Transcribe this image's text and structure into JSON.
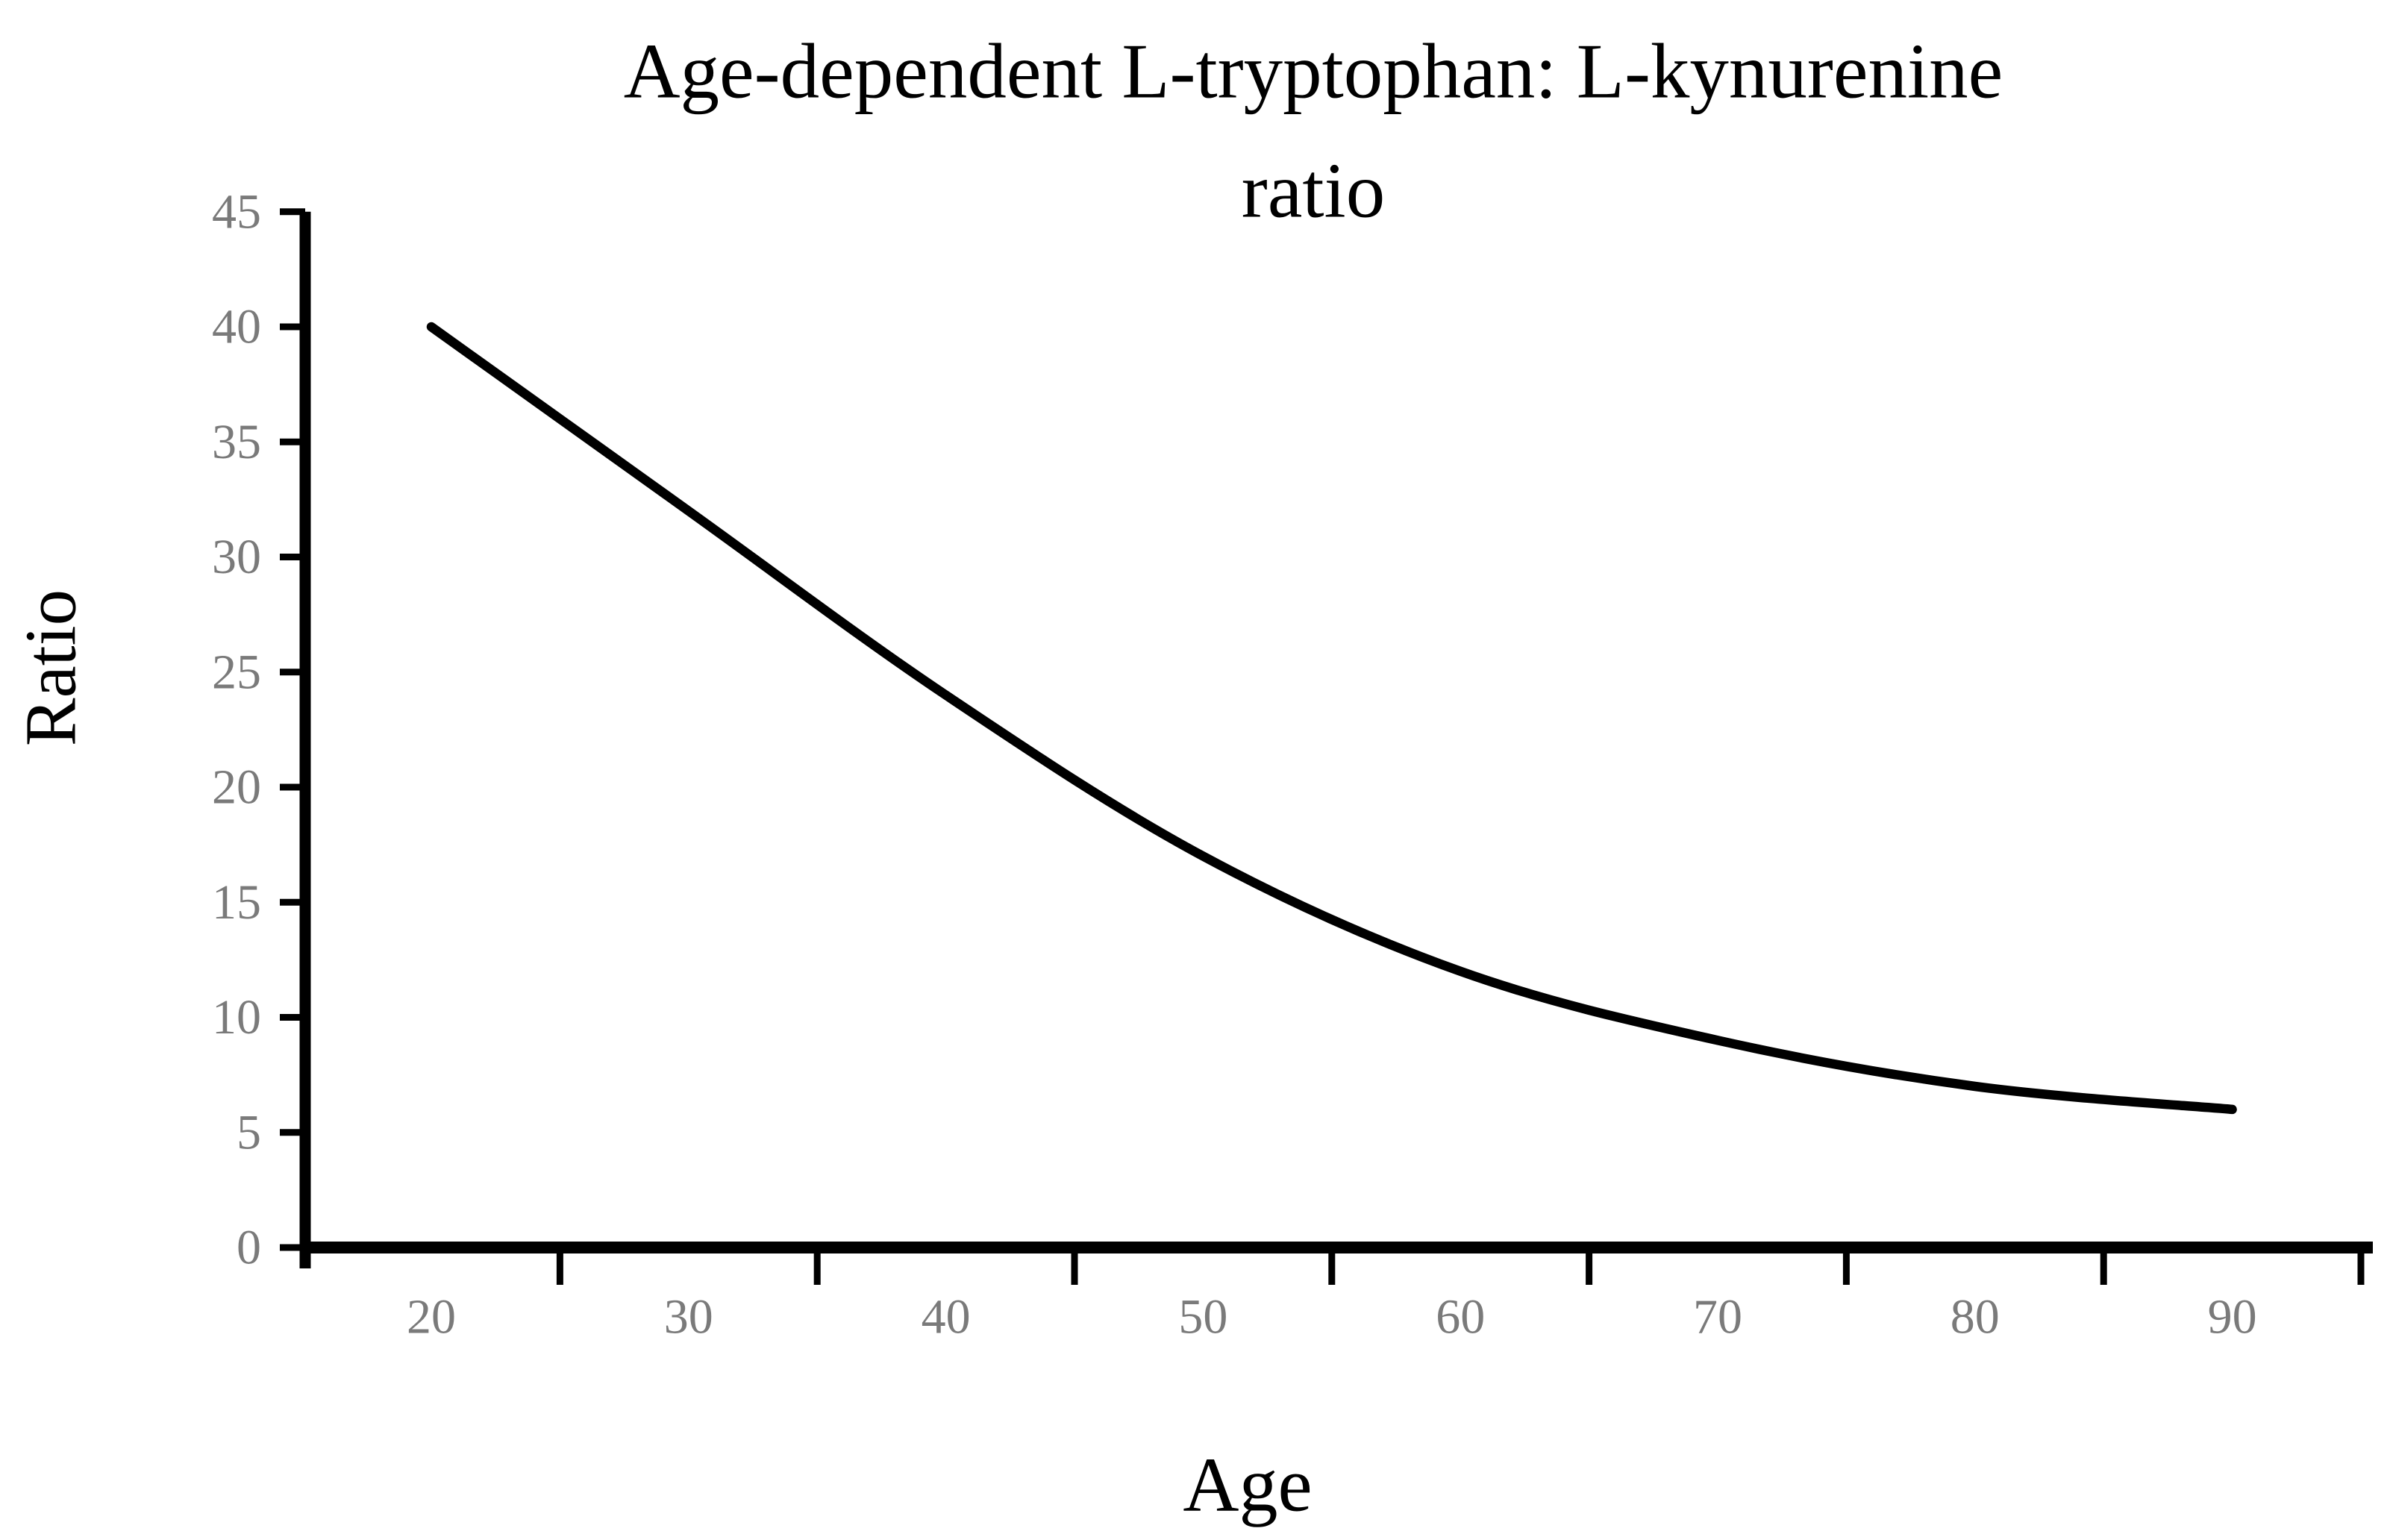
{
  "title": {
    "line1": "Age-dependent L-tryptophan: L-kynurenine",
    "line2": "ratio"
  },
  "axes": {
    "x_label": "Age",
    "y_label": "Ratio",
    "x_tick_labels": [
      "20",
      "30",
      "40",
      "50",
      "60",
      "70",
      "80",
      "90"
    ],
    "y_tick_labels": [
      "0",
      "5",
      "10",
      "15",
      "20",
      "25",
      "30",
      "35",
      "40",
      "45"
    ]
  },
  "colors": {
    "background": "#ffffff",
    "line": "#000000",
    "axis": "#000000",
    "tick_label": "#7a7a7a",
    "text": "#000000"
  },
  "chart_data": {
    "type": "line",
    "x": [
      20,
      30,
      40,
      50,
      60,
      70,
      80,
      90
    ],
    "values": [
      40,
      32,
      24,
      17,
      12,
      9,
      7,
      6
    ],
    "series_name": "L-tryptophan:L-kynurenine ratio",
    "title": "Age-dependent L-tryptophan: L-kynurenine ratio",
    "xlabel": "Age",
    "ylabel": "Ratio",
    "ylim": [
      0,
      45
    ],
    "yticks": [
      0,
      5,
      10,
      15,
      20,
      25,
      30,
      35,
      40,
      45
    ],
    "xlim_categories": [
      20,
      90
    ],
    "grid": false,
    "legend": "none",
    "smooth": true,
    "line_color": "#000000"
  }
}
